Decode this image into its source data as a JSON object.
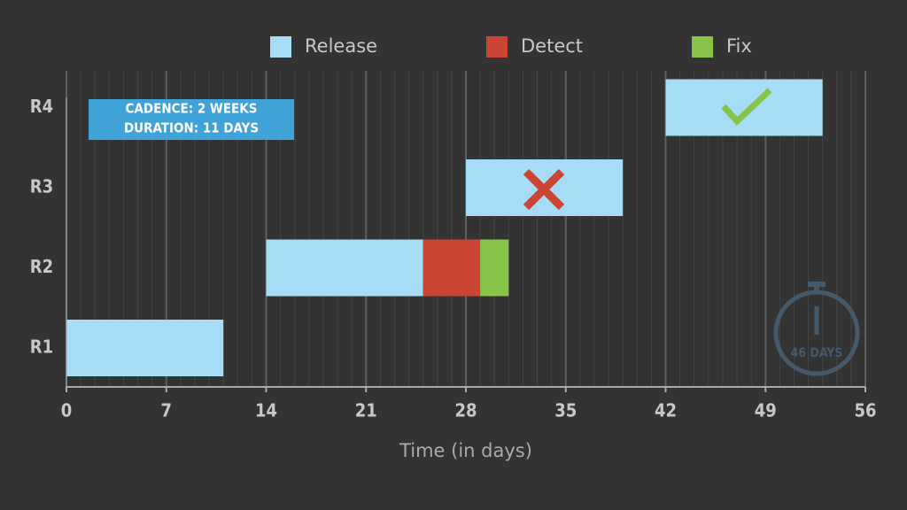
{
  "chart_data": {
    "type": "gantt",
    "categories": [
      "R1",
      "R2",
      "R3",
      "R4"
    ],
    "series": [
      {
        "name": "Release",
        "color": "#a6dcf6",
        "start": [
          0,
          14,
          28,
          42
        ],
        "end": [
          11,
          25,
          39,
          53
        ]
      },
      {
        "name": "Detect",
        "color": "#cc4433",
        "start": [
          null,
          25,
          null,
          null
        ],
        "end": [
          null,
          29,
          null,
          null
        ]
      },
      {
        "name": "Fix",
        "color": "#88c34a",
        "start": [
          null,
          29,
          null,
          null
        ],
        "end": [
          null,
          31,
          null,
          null
        ]
      }
    ],
    "xlim": [
      0,
      56
    ],
    "xticks": [
      0,
      7,
      14,
      21,
      28,
      35,
      42,
      49,
      56
    ],
    "xlabel": "Time (in days)",
    "grid": true,
    "minor_grid": true,
    "annotations": [
      "CADENCE: 2 WEEKS",
      "DURATION: 11 DAYS",
      "46 DAYS"
    ]
  }
}
